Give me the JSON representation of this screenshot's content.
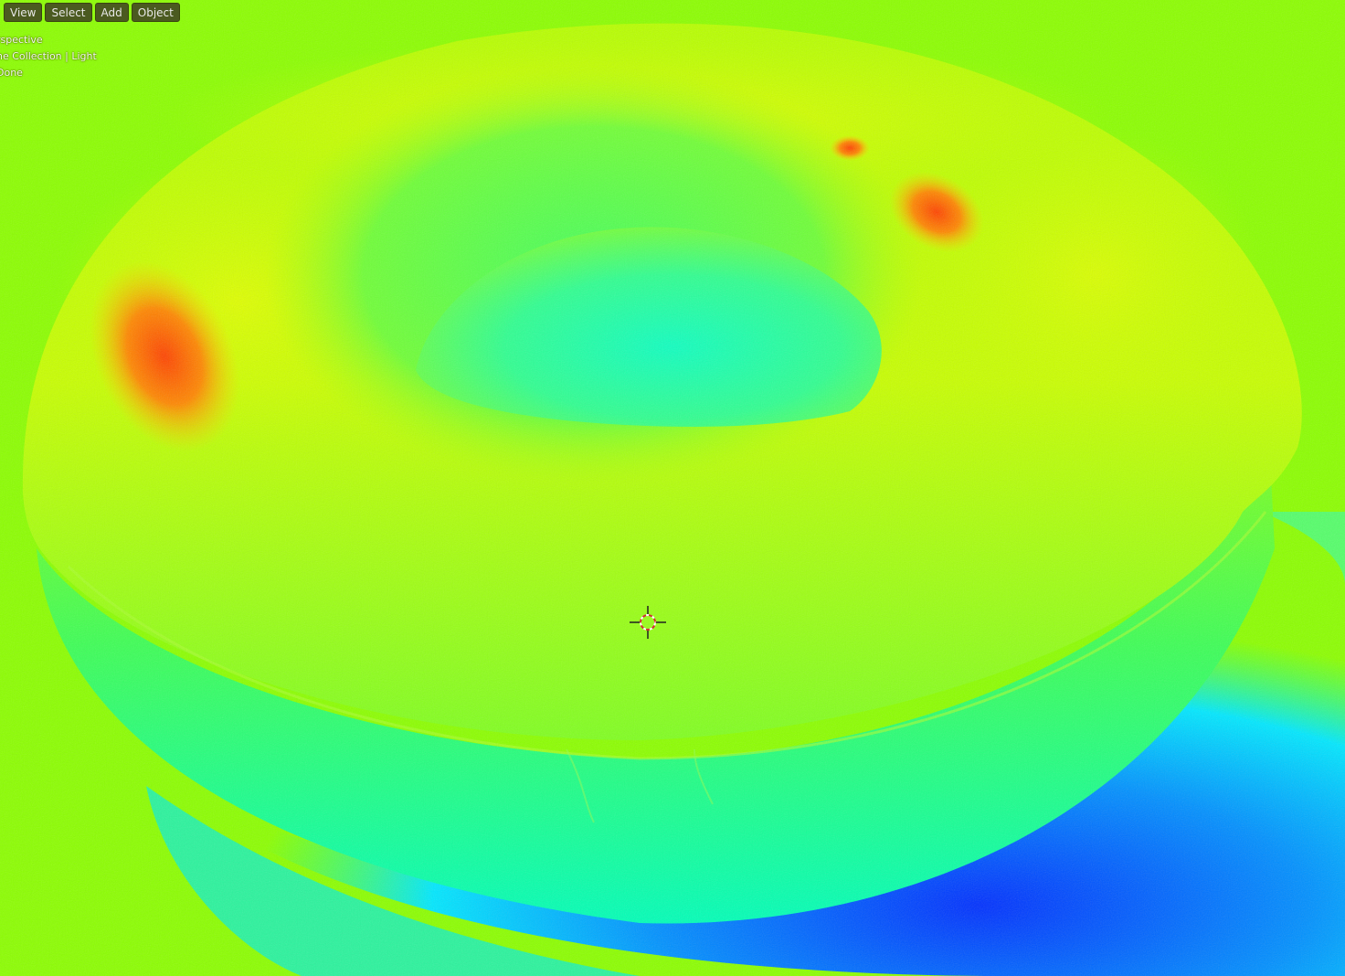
{
  "header": {
    "menus": [
      {
        "label": "View"
      },
      {
        "label": "Select"
      },
      {
        "label": "Add"
      },
      {
        "label": "Object"
      }
    ]
  },
  "overlay": {
    "view_name": "rspective",
    "collection": "ne Collection | Light",
    "status": "Done"
  },
  "viewport": {
    "shading": "false-color heat map",
    "object": "torus",
    "colors": {
      "background": "#8cff00",
      "hot": "#ff5500",
      "warm": "#d8ff00",
      "mid": "#3dff50",
      "cool": "#00ffd0",
      "cold": "#0044ff"
    }
  },
  "icons": {
    "cursor": "3d-cursor-icon"
  }
}
